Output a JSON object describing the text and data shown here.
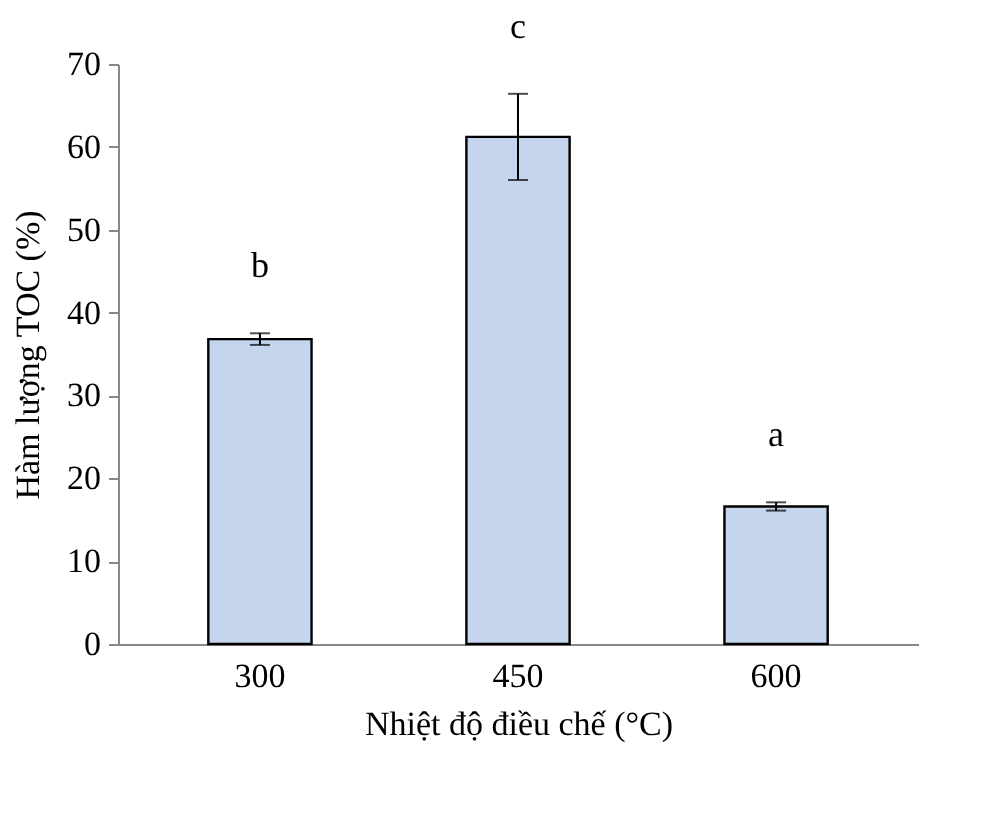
{
  "chart_data": {
    "type": "bar",
    "xlabel": "Nhiệt độ điều chế (°C)",
    "ylabel": "Hàm lượng TOC (%)",
    "categories": [
      "300",
      "450",
      "600"
    ],
    "values": [
      36.8,
      61.2,
      16.6
    ],
    "errors": [
      0.7,
      5.2,
      0.5
    ],
    "color": "#c5d5ee",
    "ylim": [
      0,
      70
    ],
    "yticks": [
      0,
      10,
      20,
      30,
      40,
      50,
      60,
      70
    ],
    "grid": false,
    "annotations": [
      "b",
      "c",
      "a"
    ]
  }
}
